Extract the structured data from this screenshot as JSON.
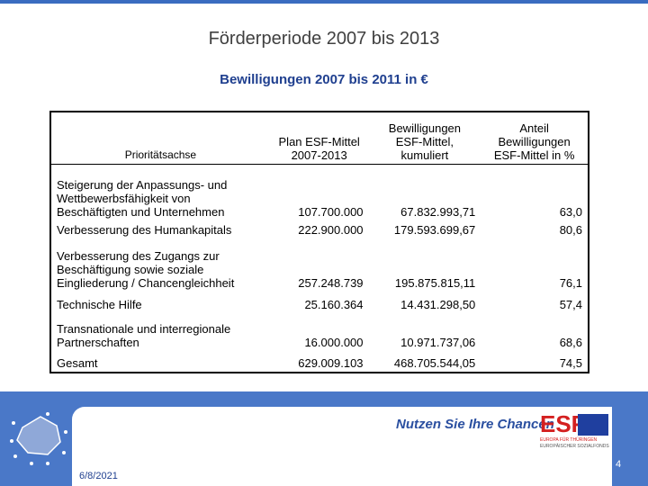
{
  "header": {
    "title": "Förderperiode 2007 bis 2013",
    "subtitle": "Bewilligungen 2007 bis 2011 in €"
  },
  "table": {
    "columns": [
      "Prioritätsachse",
      "Plan ESF-Mittel 2007-2013",
      "Bewilligungen ESF-Mittel, kumuliert",
      "Anteil Bewilligungen ESF-Mittel in %"
    ],
    "rows": [
      [
        "Steigerung der Anpassungs- und Wettbewerbsfähigkeit von Beschäftigten und Unternehmen",
        "107.700.000",
        "67.832.993,71",
        "63,0"
      ],
      [
        "Verbesserung des Humankapitals",
        "222.900.000",
        "179.593.699,67",
        "80,6"
      ],
      [
        "Verbesserung des Zugangs zur Beschäftigung sowie soziale Eingliederung / Chancengleichheit",
        "257.248.739",
        "195.875.815,11",
        "76,1"
      ],
      [
        "Technische Hilfe",
        "25.160.364",
        "14.431.298,50",
        "57,4"
      ],
      [
        "Transnationale und interregionale Partnerschaften",
        "16.000.000",
        "10.971.737,06",
        "68,6"
      ],
      [
        "Gesamt",
        "629.009.103",
        "468.705.544,05",
        "74,5"
      ]
    ]
  },
  "footer": {
    "slogan": "Nutzen Sie Ihre Chancen",
    "logo": "ESF",
    "logo_line1": "EUROPA FÜR THÜRINGEN",
    "logo_line2": "EUROPÄISCHER SOZIALFONDS",
    "date": "6/8/2021",
    "page": "4"
  }
}
